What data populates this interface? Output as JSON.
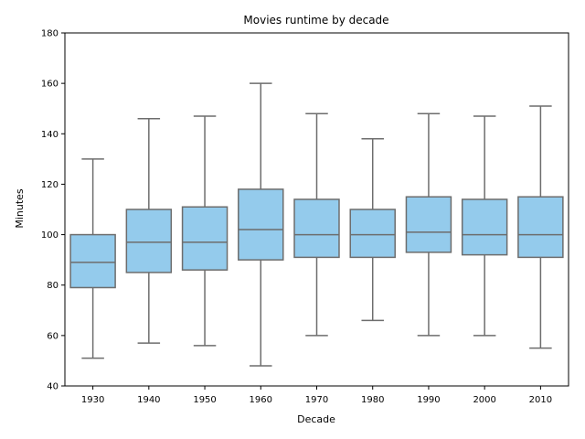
{
  "chart_data": {
    "type": "box",
    "title": "Movies runtime by decade",
    "xlabel": "Decade",
    "ylabel": "Minutes",
    "ylim": [
      40,
      180
    ],
    "yticks": [
      40,
      60,
      80,
      100,
      120,
      140,
      160,
      180
    ],
    "grid": false,
    "legend": "none",
    "box_color": "#94CBEC",
    "line_color": "#6D6D6D",
    "categories": [
      "1930",
      "1940",
      "1950",
      "1960",
      "1970",
      "1980",
      "1990",
      "2000",
      "2010"
    ],
    "boxes": [
      {
        "whisker_low": 51,
        "q1": 79,
        "median": 89,
        "q3": 100,
        "whisker_high": 130
      },
      {
        "whisker_low": 57,
        "q1": 85,
        "median": 97,
        "q3": 110,
        "whisker_high": 146
      },
      {
        "whisker_low": 56,
        "q1": 86,
        "median": 97,
        "q3": 111,
        "whisker_high": 147
      },
      {
        "whisker_low": 48,
        "q1": 90,
        "median": 102,
        "q3": 118,
        "whisker_high": 160
      },
      {
        "whisker_low": 60,
        "q1": 91,
        "median": 100,
        "q3": 114,
        "whisker_high": 148
      },
      {
        "whisker_low": 66,
        "q1": 91,
        "median": 100,
        "q3": 110,
        "whisker_high": 138
      },
      {
        "whisker_low": 60,
        "q1": 93,
        "median": 101,
        "q3": 115,
        "whisker_high": 148
      },
      {
        "whisker_low": 60,
        "q1": 92,
        "median": 100,
        "q3": 114,
        "whisker_high": 147
      },
      {
        "whisker_low": 55,
        "q1": 91,
        "median": 100,
        "q3": 115,
        "whisker_high": 151
      }
    ]
  }
}
